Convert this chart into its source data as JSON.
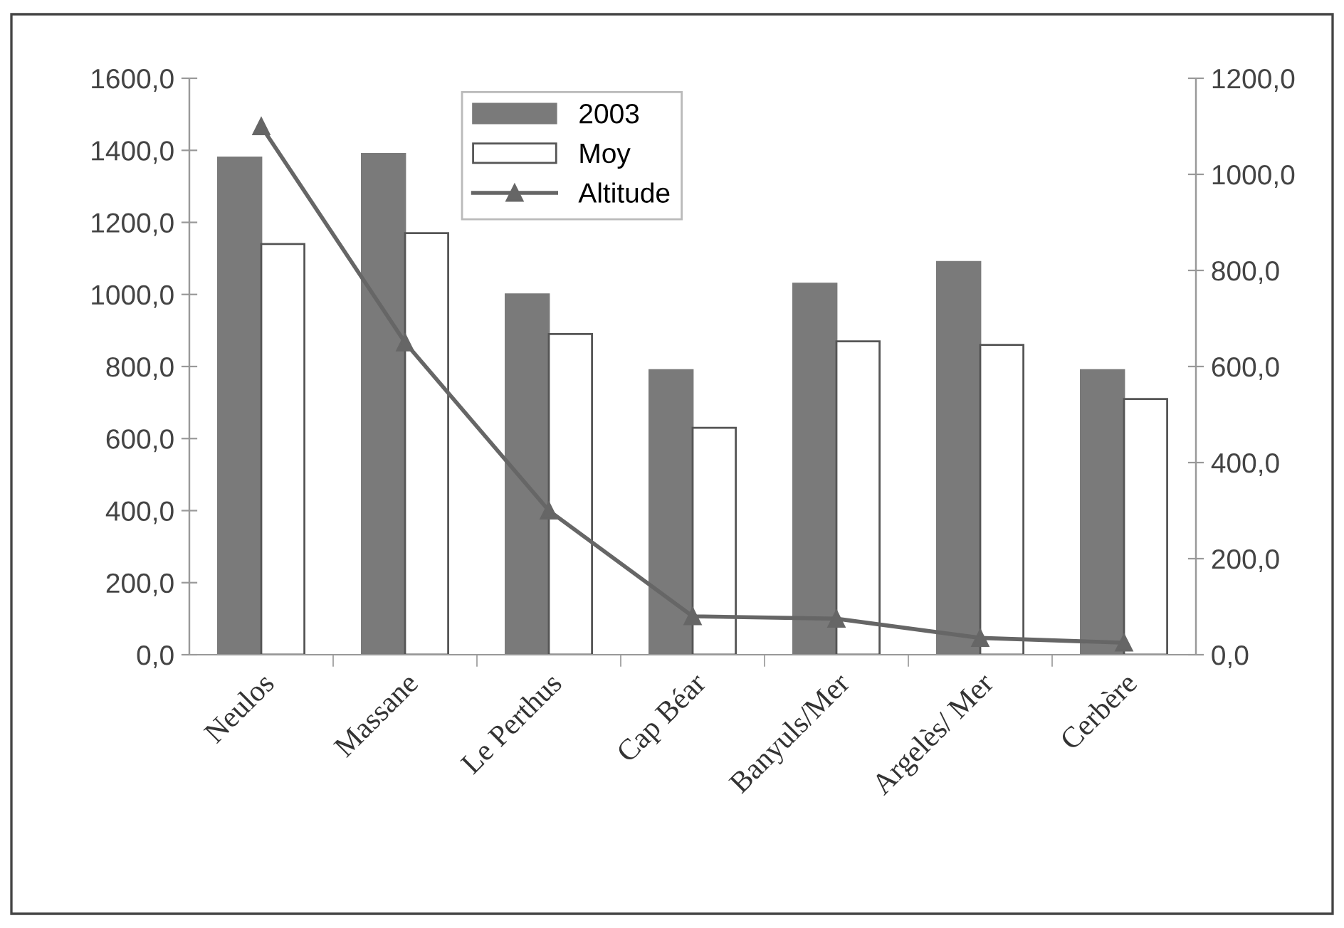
{
  "chart_data": {
    "type": "bar",
    "categories": [
      "Neulos",
      "Massane",
      "Le Perthus",
      "Cap Béar",
      "Banyuls/Mer",
      "Argelès/ Mer",
      "Cerbère"
    ],
    "series": [
      {
        "name": "2003",
        "color": "#7a7a7a",
        "values": [
          1380,
          1390,
          1000,
          790,
          1030,
          1090,
          790
        ]
      },
      {
        "name": "Moy",
        "color": "#ffffff",
        "values": [
          1140,
          1170,
          890,
          630,
          870,
          860,
          710
        ]
      },
      {
        "name": "Altitude",
        "type": "line",
        "axis": "y2",
        "color": "#666666",
        "marker": "triangle",
        "values": [
          1100,
          650,
          300,
          80,
          75,
          35,
          25
        ]
      }
    ],
    "ylim": [
      0,
      1600
    ],
    "yticks": [
      {
        "value": 0,
        "label": "0,0"
      },
      {
        "value": 200,
        "label": "200,0"
      },
      {
        "value": 400,
        "label": "400,0"
      },
      {
        "value": 600,
        "label": "600,0"
      },
      {
        "value": 800,
        "label": "800,0"
      },
      {
        "value": 1000,
        "label": "1000,0"
      },
      {
        "value": 1200,
        "label": "1200,0"
      },
      {
        "value": 1400,
        "label": "1400,0"
      },
      {
        "value": 1600,
        "label": "1600,0"
      }
    ],
    "y2lim": [
      0,
      1200
    ],
    "y2ticks": [
      {
        "value": 0,
        "label": "0,0"
      },
      {
        "value": 200,
        "label": "200,0"
      },
      {
        "value": 400,
        "label": "400,0"
      },
      {
        "value": 600,
        "label": "600,0"
      },
      {
        "value": 800,
        "label": "800,0"
      },
      {
        "value": 1000,
        "label": "1000,0"
      },
      {
        "value": 1200,
        "label": "1200,0"
      }
    ],
    "legend": "top",
    "grid": false
  }
}
